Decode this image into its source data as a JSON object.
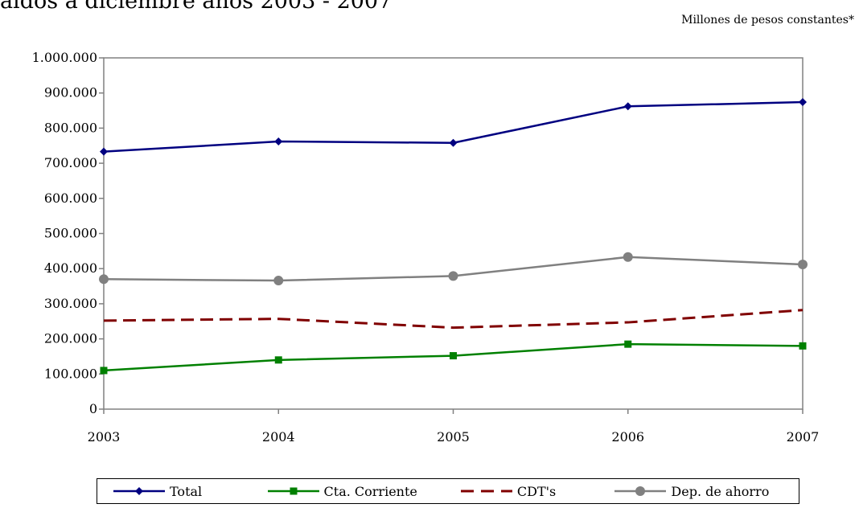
{
  "header": {
    "title_fragment": "aldos a diciembre años 2003 - 2007",
    "units": "Millones de pesos constantes*"
  },
  "chart_data": {
    "type": "line",
    "categories": [
      "2003",
      "2004",
      "2005",
      "2006",
      "2007"
    ],
    "ylim": [
      0,
      1000000
    ],
    "yticks": [
      0,
      100000,
      200000,
      300000,
      400000,
      500000,
      600000,
      700000,
      800000,
      900000,
      1000000
    ],
    "ytick_labels": [
      "0",
      "100.000",
      "200.000",
      "300.000",
      "400.000",
      "500.000",
      "600.000",
      "700.000",
      "800.000",
      "900.000",
      "1.000.000"
    ],
    "grid": false,
    "legend_position": "bottom",
    "series": [
      {
        "name": "Total",
        "values": [
          733000,
          762000,
          758000,
          862000,
          874000
        ],
        "color": "#000080",
        "marker": "diamond",
        "dash": "solid"
      },
      {
        "name": "Cta. Corriente",
        "values": [
          110000,
          140000,
          152000,
          185000,
          180000
        ],
        "color": "#008000",
        "marker": "square",
        "dash": "solid"
      },
      {
        "name": "CDT's",
        "values": [
          252000,
          257000,
          232000,
          247000,
          282000
        ],
        "color": "#800000",
        "marker": "none",
        "dash": "dashed"
      },
      {
        "name": "Dep. de ahorro",
        "values": [
          370000,
          366000,
          379000,
          433000,
          412000
        ],
        "color": "#808080",
        "marker": "circle",
        "dash": "solid"
      }
    ]
  }
}
